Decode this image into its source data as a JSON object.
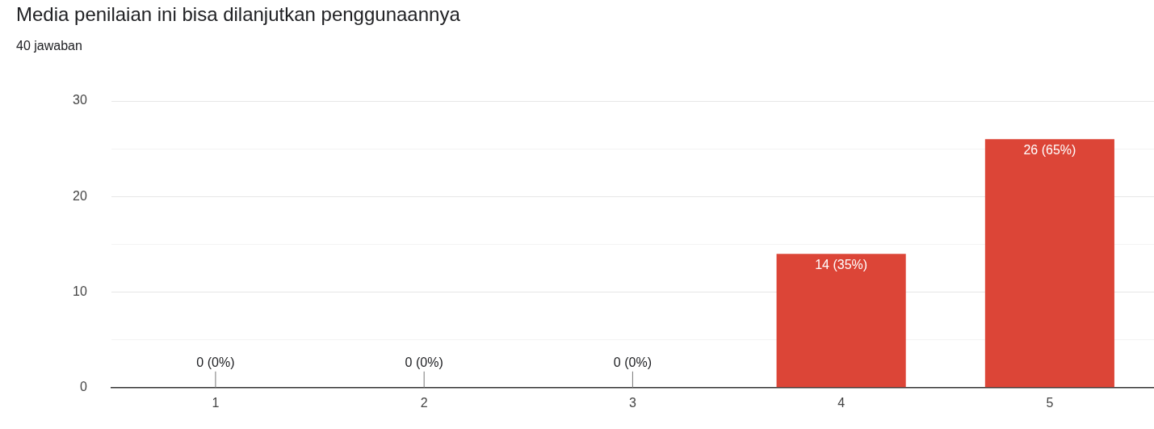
{
  "chart_data": {
    "type": "bar",
    "title": "Media penilaian ini bisa dilanjutkan penggunaannya",
    "subtitle": "40 jawaban",
    "categories": [
      "1",
      "2",
      "3",
      "4",
      "5"
    ],
    "values": [
      0,
      0,
      0,
      14,
      26
    ],
    "value_labels": [
      "0 (0%)",
      "0 (0%)",
      "0 (0%)",
      "14 (35%)",
      "26 (65%)"
    ],
    "color": "#dc4537",
    "ylim": [
      0,
      30
    ],
    "yticks": [
      0,
      {
        "value": 5,
        "label": null
      },
      10,
      {
        "value": 15,
        "label": null
      },
      20,
      {
        "value": 25,
        "label": null
      },
      30
    ],
    "grid": "y",
    "legend": false
  }
}
